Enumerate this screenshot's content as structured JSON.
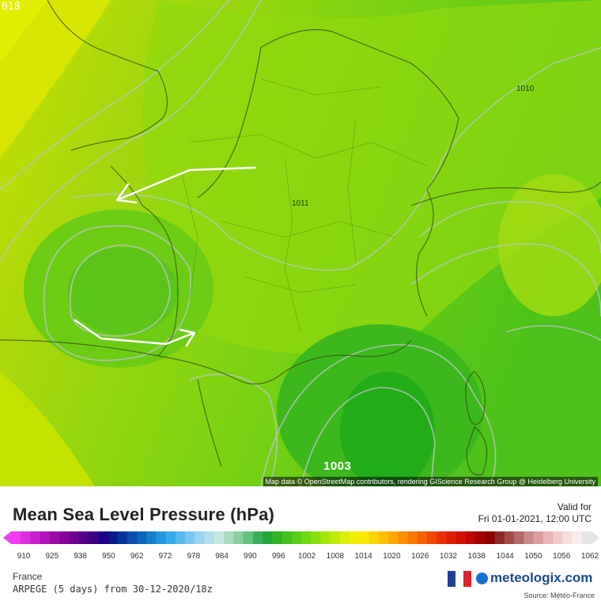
{
  "map": {
    "frame_label": "018",
    "attribution": "Map data © OpenStreetMap contributors, rendering GIScience Research Group @ Heidelberg University",
    "contour_labels": [
      "1010",
      "1011"
    ],
    "low_label": "1003"
  },
  "panel": {
    "title": "Mean Sea Level Pressure (hPa)",
    "valid_label": "Valid for",
    "valid_time": "Fri 01-01-2021, 12:00 UTC",
    "scale_ticks": [
      "910",
      "925",
      "938",
      "950",
      "962",
      "972",
      "978",
      "984",
      "990",
      "996",
      "1002",
      "1008",
      "1014",
      "1020",
      "1026",
      "1032",
      "1038",
      "1044",
      "1050",
      "1056",
      "1062"
    ],
    "scale_colors": [
      "#f23cf2",
      "#dc2ee0",
      "#c61fcc",
      "#b012bb",
      "#9a08aa",
      "#86039a",
      "#6f0090",
      "#55008a",
      "#3a0088",
      "#1f0086",
      "#0b1a86",
      "#073497",
      "#0a4ea8",
      "#0c66ba",
      "#1480cc",
      "#2496dd",
      "#3aaae8",
      "#5ab8ee",
      "#7ac6f0",
      "#9ad2f0",
      "#b6dcef",
      "#c8e8e0",
      "#a8dcc0",
      "#88d0a0",
      "#62c080",
      "#3cae5a",
      "#22a636",
      "#2eb424",
      "#42c21c",
      "#58ce16",
      "#6fd812",
      "#8ae00e",
      "#a6e60c",
      "#c0ea0a",
      "#daee08",
      "#eef000",
      "#f8e800",
      "#fad400",
      "#fcc000",
      "#fca800",
      "#fc9000",
      "#fa7800",
      "#f66000",
      "#f04800",
      "#e83000",
      "#de1e00",
      "#d01000",
      "#bc0800",
      "#a40400",
      "#8c0000",
      "#8e2828",
      "#a04a4a",
      "#b46a6a",
      "#c88a8a",
      "#da9e9e",
      "#e8b4b4",
      "#f2caca",
      "#f8dede",
      "#fbecec",
      "#e4e4e4"
    ],
    "region": "France",
    "model": "ARPEGE (5 days) from 30-12-2020/18z",
    "brand": "meteologix.com",
    "source": "Source: Météo-France",
    "flag_colors": [
      "#1f3f94",
      "#ffffff",
      "#e0202a"
    ]
  }
}
